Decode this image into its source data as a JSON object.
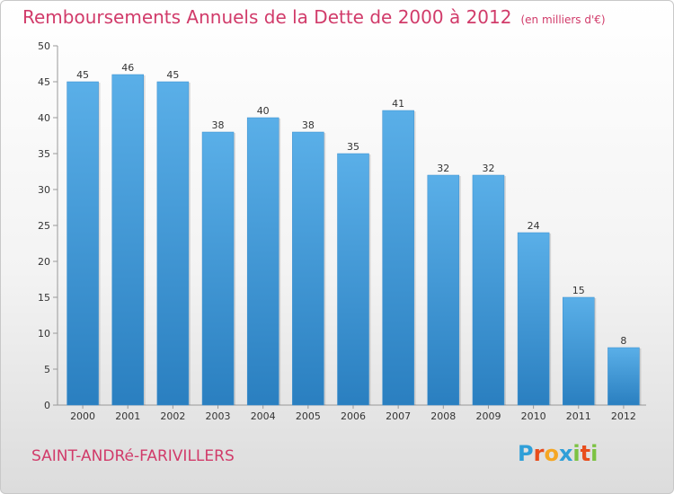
{
  "header": {
    "title": "Remboursements Annuels de la Dette de 2000 à 2012",
    "subtitle": "(en milliers d'€)"
  },
  "footer": {
    "commune": "SAINT-ANDRé-FARIVILLERS",
    "logo_letters": [
      "P",
      "r",
      "o",
      "x",
      "i",
      "t",
      "i"
    ],
    "logo_colors": [
      "#2f9fd8",
      "#e84d1c",
      "#f5a623",
      "#2f9fd8",
      "#7cc242",
      "#e84d1c",
      "#7cc242"
    ]
  },
  "colors": {
    "title": "#d13b6a",
    "bar_light": "#5aafe8",
    "bar_dark": "#2a7fc0"
  },
  "chart_data": {
    "type": "bar",
    "title": "Remboursements Annuels de la Dette de 2000 à 2012",
    "subtitle": "(en milliers d'€)",
    "xlabel": "",
    "ylabel": "",
    "categories": [
      "2000",
      "2001",
      "2002",
      "2003",
      "2004",
      "2005",
      "2006",
      "2007",
      "2008",
      "2009",
      "2010",
      "2011",
      "2012"
    ],
    "values": [
      45,
      46,
      45,
      38,
      40,
      38,
      35,
      41,
      32,
      32,
      24,
      15,
      8
    ],
    "value_labels": [
      "45",
      "46",
      "45",
      "38",
      "40",
      "38",
      "35",
      "41",
      "32",
      "32",
      "24",
      "15",
      "8"
    ],
    "ylim": [
      0,
      50
    ],
    "yticks": [
      0,
      5,
      10,
      15,
      20,
      25,
      30,
      35,
      40,
      45,
      50
    ],
    "ytick_labels": [
      "0",
      "5",
      "10",
      "15",
      "20",
      "25",
      "30",
      "35",
      "40",
      "45",
      "50"
    ],
    "grid": false,
    "legend": "none"
  }
}
